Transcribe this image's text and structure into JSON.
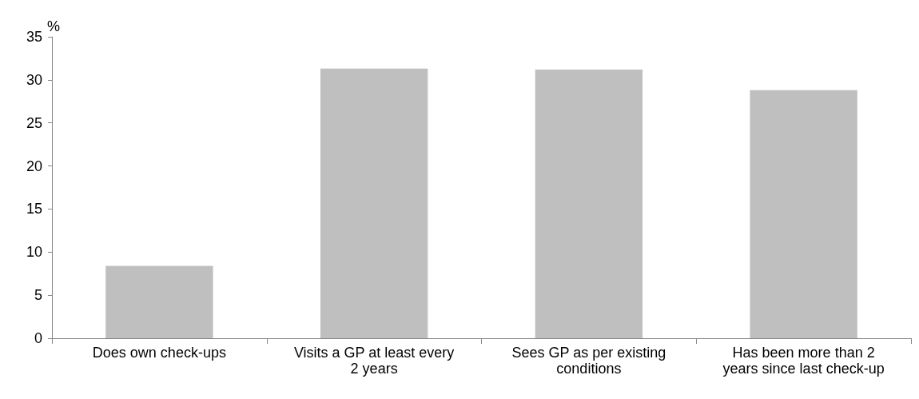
{
  "chart_data": {
    "type": "bar",
    "ylabel": "%",
    "categories": [
      "Does own check-ups",
      "Visits a GP at least every\n2 years",
      "Sees GP as per existing\nconditions",
      "Has been more than 2\nyears since last check-up"
    ],
    "values": [
      8.4,
      31.3,
      31.2,
      28.8
    ],
    "color": "#bfbfbf",
    "ylim": [
      0,
      35
    ],
    "yticks": [
      0,
      5,
      10,
      15,
      20,
      25,
      30,
      35
    ],
    "grid": false
  }
}
